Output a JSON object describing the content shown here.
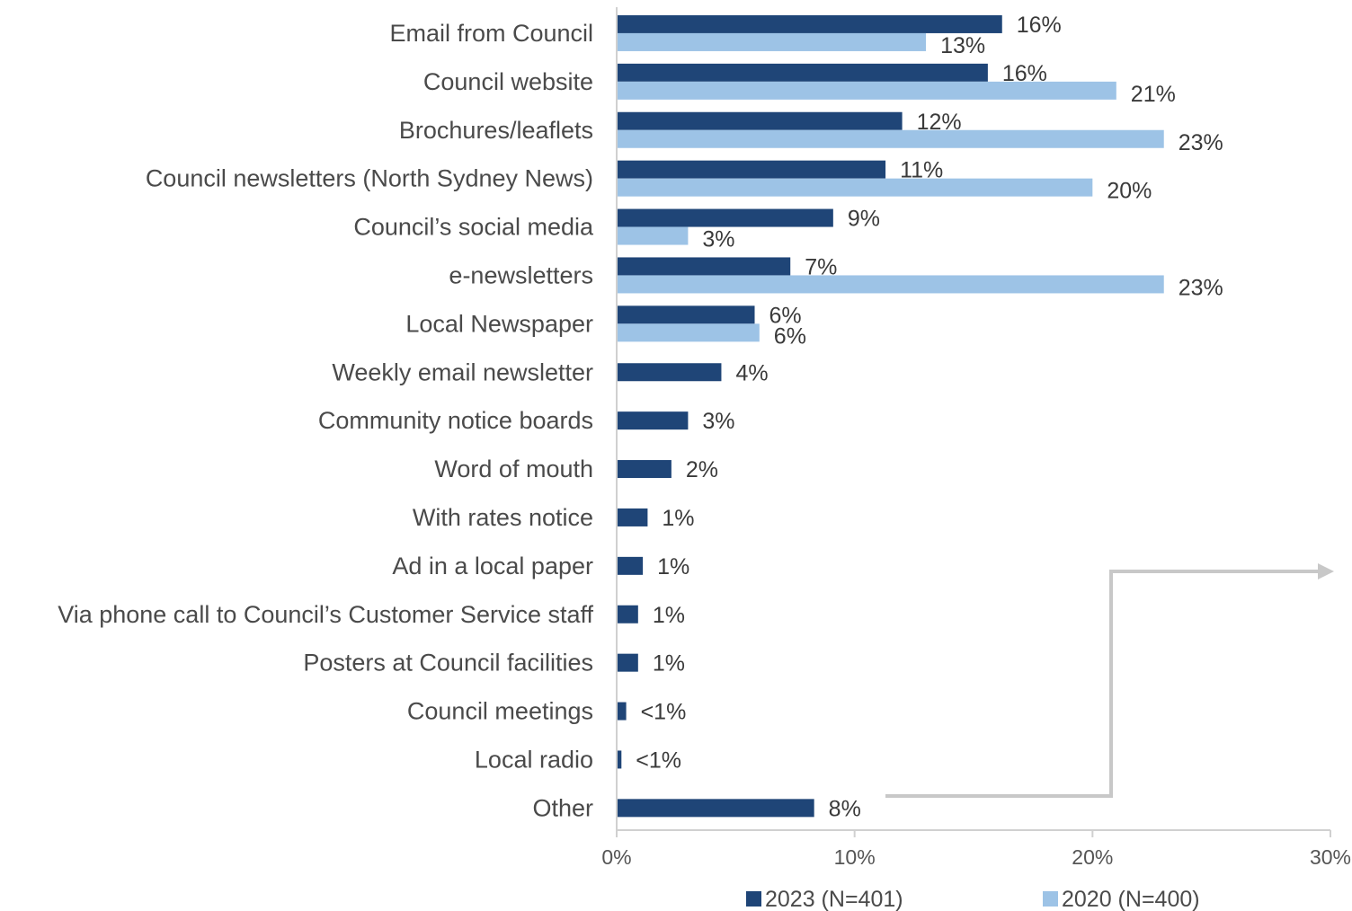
{
  "chart_data": {
    "type": "bar",
    "orientation": "horizontal",
    "categories": [
      "Email from Council",
      "Council website",
      "Brochures/leaflets",
      "Council newsletters (North Sydney News)",
      "Council’s social media",
      "e-newsletters",
      "Local Newspaper",
      "Weekly email newsletter",
      "Community notice boards",
      "Word of mouth",
      "With rates notice",
      "Ad in a local paper",
      "Via phone call to Council’s Customer Service staff",
      "Posters at Council facilities",
      "Council meetings",
      "Local radio",
      "Other"
    ],
    "series": [
      {
        "name": "2023 (N=401)",
        "color": "#1f4577",
        "values": [
          16.2,
          15.6,
          12.0,
          11.3,
          9.1,
          7.3,
          5.8,
          4.4,
          3.0,
          2.3,
          1.3,
          1.1,
          0.9,
          0.9,
          0.4,
          0.2,
          8.3
        ],
        "labels": [
          "16%",
          "16%",
          "12%",
          "11%",
          "9%",
          "7%",
          "6%",
          "4%",
          "3%",
          "2%",
          "1%",
          "1%",
          "1%",
          "1%",
          "<1%",
          "<1%",
          "8%"
        ]
      },
      {
        "name": "2020 (N=400)",
        "color": "#9dc3e6",
        "values": [
          13.0,
          21.0,
          23.0,
          20.0,
          3.0,
          23.0,
          6.0,
          null,
          null,
          null,
          null,
          null,
          null,
          null,
          null,
          null,
          null
        ],
        "labels": [
          "13%",
          "21%",
          "23%",
          "20%",
          "3%",
          "23%",
          "6%",
          null,
          null,
          null,
          null,
          null,
          null,
          null,
          null,
          null,
          null
        ]
      }
    ],
    "xlim": [
      0,
      30
    ],
    "xticks": [
      0,
      10,
      20,
      30
    ],
    "xtick_labels": [
      "0%",
      "10%",
      "20%",
      "30%"
    ],
    "title": "",
    "xlabel": "",
    "ylabel": "",
    "grid": false,
    "legend_position": "bottom",
    "annotation": "arrow from Other"
  },
  "colors": {
    "axis": "#d0d0d0",
    "arrow": "#c8c8c8"
  }
}
